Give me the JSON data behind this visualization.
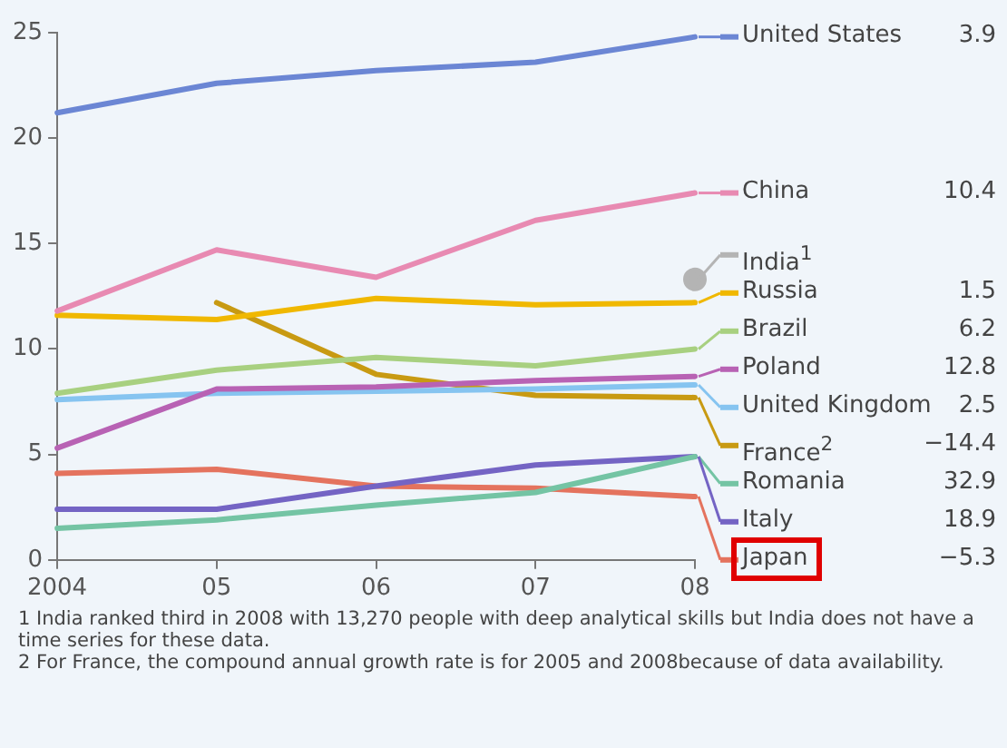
{
  "chart_data": {
    "type": "line",
    "categories": [
      "2004",
      "05",
      "06",
      "07",
      "08"
    ],
    "ylim": [
      0,
      25
    ],
    "yticks": [
      0,
      5,
      10,
      15,
      20,
      25
    ],
    "legend": "right",
    "series": [
      {
        "name": "United States",
        "color": "#6b86d4",
        "values": [
          21.2,
          22.6,
          23.2,
          23.6,
          24.8
        ]
      },
      {
        "name": "China",
        "color": "#e88ab2",
        "values": [
          11.8,
          14.7,
          13.4,
          16.1,
          17.4
        ]
      },
      {
        "name": "India$^{1}$",
        "type": "scatter",
        "color": "#b4b4b4",
        "values": [
          null,
          null,
          null,
          null,
          13.3
        ]
      },
      {
        "name": "Russia",
        "color": "#f0b800",
        "values": [
          11.6,
          11.4,
          12.4,
          12.1,
          12.2
        ]
      },
      {
        "name": "Brazil",
        "color": "#a8d080",
        "values": [
          7.9,
          9.0,
          9.6,
          9.2,
          10.0
        ]
      },
      {
        "name": "Poland",
        "color": "#b862b4",
        "values": [
          5.3,
          8.1,
          8.2,
          8.5,
          8.7
        ]
      },
      {
        "name": "United Kingdom",
        "color": "#86c4f0",
        "values": [
          7.6,
          7.9,
          8.0,
          8.1,
          8.3
        ]
      },
      {
        "name": "France$^{2}$",
        "color": "#c89a12",
        "values": [
          null,
          12.2,
          8.8,
          7.8,
          7.7
        ]
      },
      {
        "name": "Romania",
        "color": "#74c4a4",
        "values": [
          1.5,
          1.9,
          2.6,
          3.2,
          4.9
        ]
      },
      {
        "name": "Italy",
        "color": "#7464c4",
        "values": [
          2.4,
          2.4,
          3.5,
          4.5,
          4.9
        ]
      },
      {
        "name": "Japan",
        "color": "#e4735e",
        "values": [
          4.1,
          4.3,
          3.5,
          3.4,
          3.0
        ]
      }
    ],
    "annotations": [
      "3.9",
      "10.4",
      "1.5",
      "6.2",
      "12.8",
      "2.5",
      "−14.4",
      "32.9",
      "18.9",
      "−5.3",
      "1 India ranked third in 2008 with 13,270 people with deep analytical skills but India does not have a time series for these data.",
      "2 For France, the compound annual growth rate is for 2005 and 2008because of data availability."
    ]
  }
}
